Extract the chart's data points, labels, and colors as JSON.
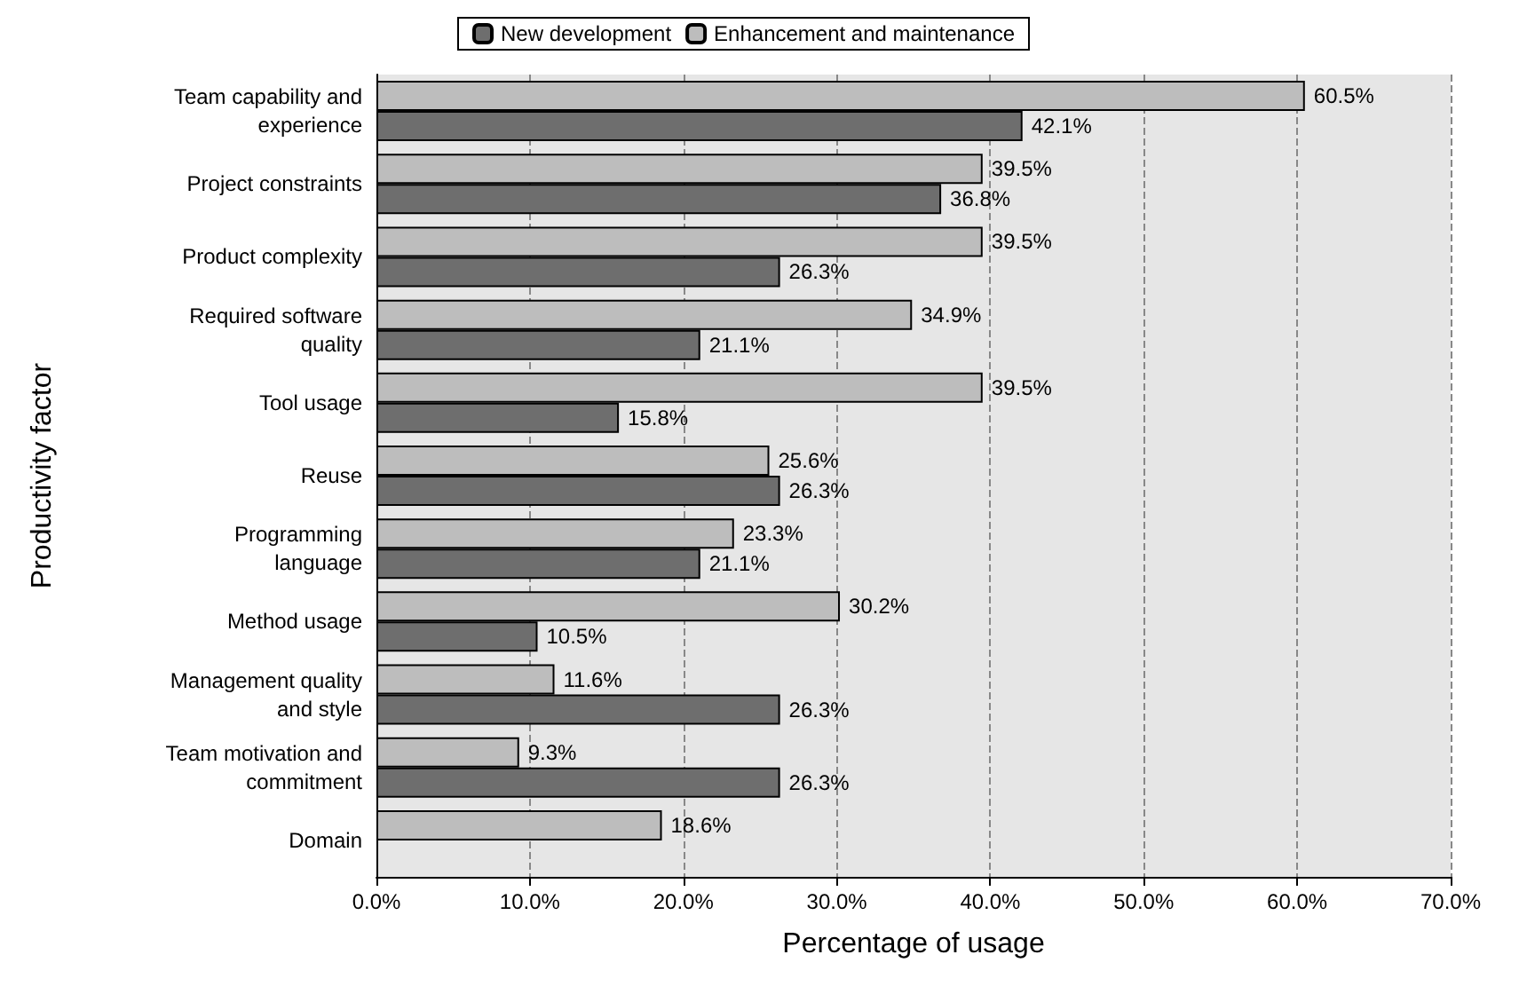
{
  "chart_data": {
    "type": "bar",
    "orientation": "horizontal",
    "xlabel": "Percentage of usage",
    "ylabel": "Productivity factor",
    "categories": [
      "Team capability and\nexperience",
      "Project constraints",
      "Product complexity",
      "Required software\nquality",
      "Tool usage",
      "Reuse",
      "Programming\nlanguage",
      "Method usage",
      "Management quality\nand style",
      "Team motivation and\ncommitment",
      "Domain"
    ],
    "series": [
      {
        "name": "New development",
        "color": "#6e6e6e",
        "values": [
          42.1,
          36.8,
          26.3,
          21.1,
          15.8,
          26.3,
          21.1,
          10.5,
          26.3,
          26.3,
          null
        ],
        "value_labels": [
          "42.1%",
          "36.8%",
          "26.3%",
          "21.1%",
          "15.8%",
          "26.3%",
          "21.1%",
          "10.5%",
          "26.3%",
          "26.3%",
          null
        ]
      },
      {
        "name": "Enhancement and maintenance",
        "color": "#bdbdbd",
        "values": [
          60.5,
          39.5,
          39.5,
          34.9,
          39.5,
          25.6,
          23.3,
          30.2,
          11.6,
          9.3,
          18.6
        ],
        "value_labels": [
          "60.5%",
          "39.5%",
          "39.5%",
          "34.9%",
          "39.5%",
          "25.6%",
          "23.3%",
          "30.2%",
          "11.6%",
          "9.3%",
          "18.6%"
        ]
      }
    ],
    "xlim": [
      0,
      70
    ],
    "xticks": [
      {
        "value": 0,
        "label": "0.0%"
      },
      {
        "value": 10,
        "label": "10.0%"
      },
      {
        "value": 20,
        "label": "20.0%"
      },
      {
        "value": 30,
        "label": "30.0%"
      },
      {
        "value": 40,
        "label": "40.0%"
      },
      {
        "value": 50,
        "label": "50.0%"
      },
      {
        "value": 60,
        "label": "60.0%"
      },
      {
        "value": 70,
        "label": "70.0%"
      }
    ],
    "grid": "x",
    "legend": "top"
  }
}
